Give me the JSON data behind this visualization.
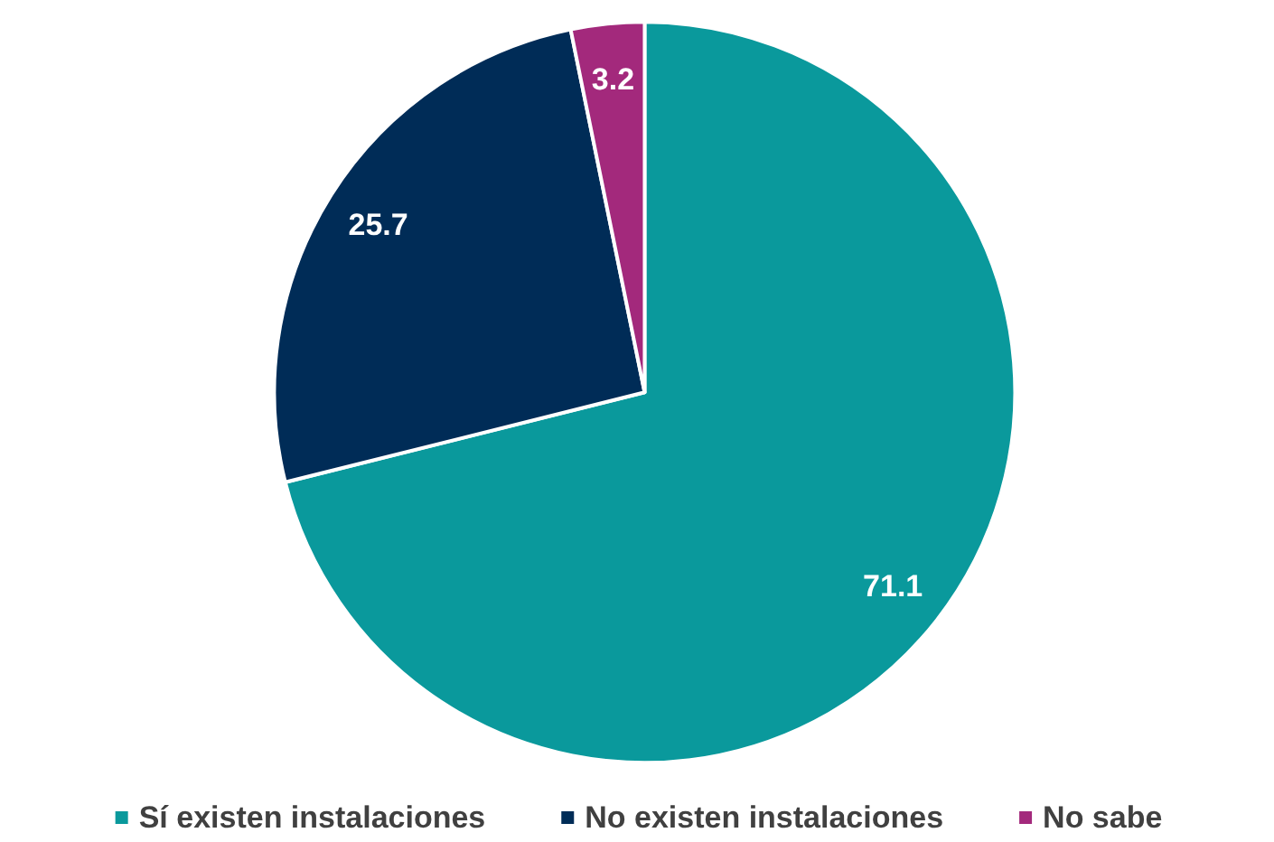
{
  "chart_data": {
    "type": "pie",
    "categories": [
      "Sí existen instalaciones",
      "No existen instalaciones",
      "No sabe"
    ],
    "values": [
      71.1,
      25.7,
      3.2
    ],
    "colors": [
      "#0a999c",
      "#002c57",
      "#a3297c"
    ],
    "data_labels": true,
    "legend": "bottom"
  }
}
